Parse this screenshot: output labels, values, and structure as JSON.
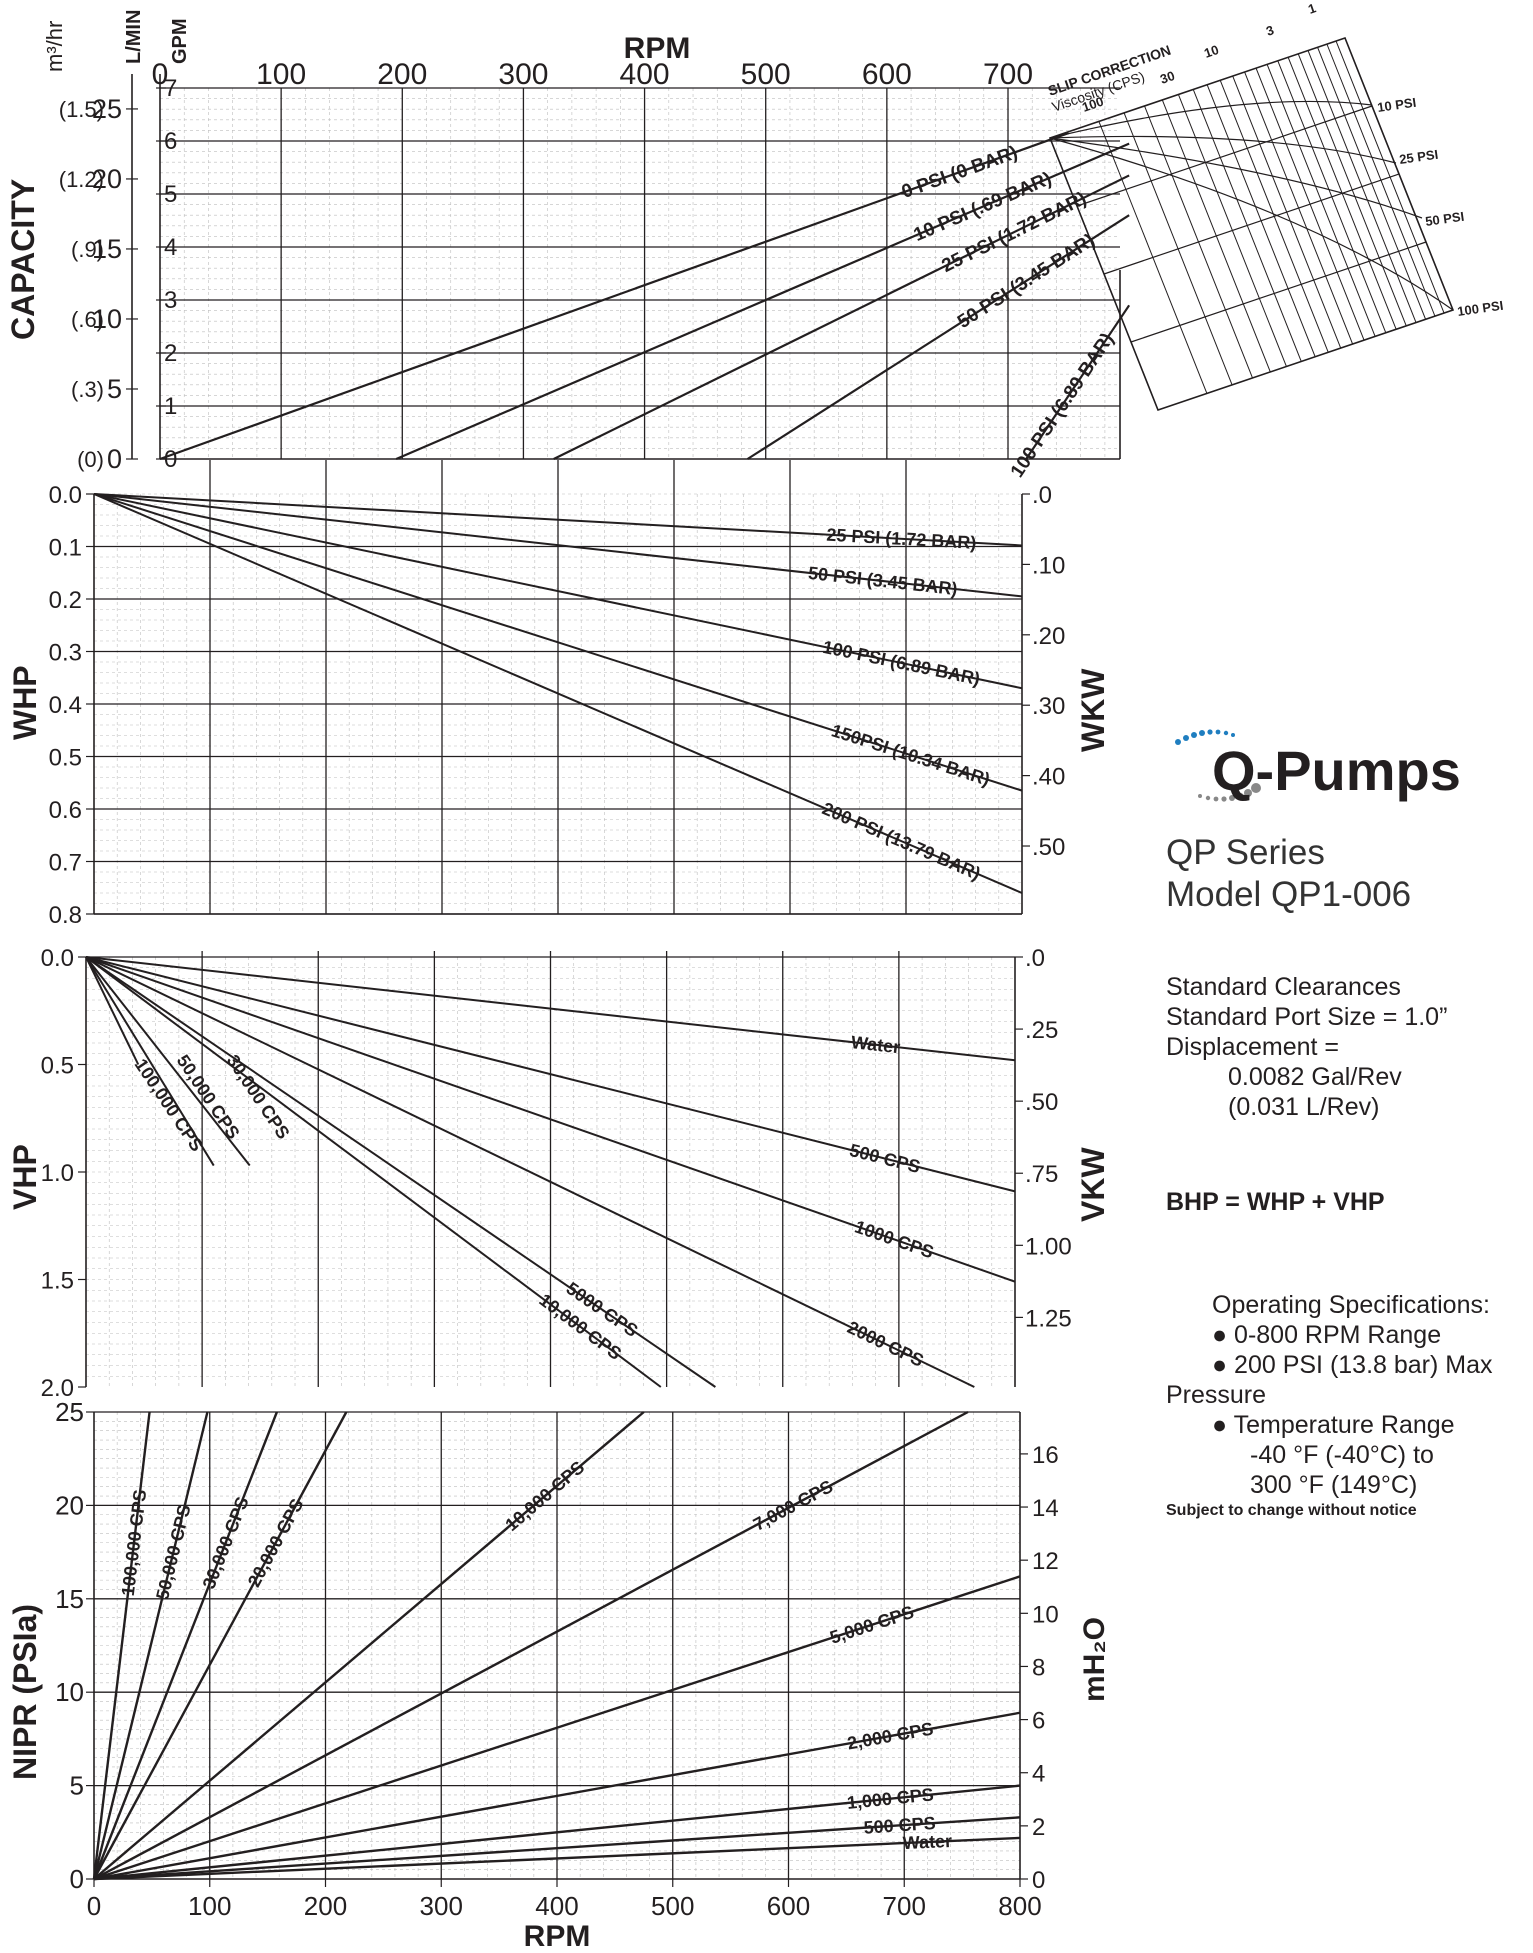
{
  "chart_data": [
    {
      "type": "line",
      "xlabel": "RPM",
      "ylabel": "CAPACITY",
      "xlim": [
        0,
        800
      ],
      "ylim_gpm": [
        0,
        7
      ],
      "x_ticks": [
        "0",
        "100",
        "200",
        "300",
        "400",
        "500",
        "600",
        "700"
      ],
      "unit_labels": [
        "m³/hr",
        "L/MIN",
        "GPM"
      ],
      "gpm_ticks": [
        "0",
        "1",
        "2",
        "3",
        "4",
        "5",
        "6",
        "7"
      ],
      "lmin_ticks": [
        "0",
        "5",
        "10",
        "15",
        "20",
        "25"
      ],
      "m3hr_ticks": [
        "(0)",
        "(.3)",
        "(.6)",
        "(.9)",
        "(1.2)",
        "(1.5)"
      ],
      "series": [
        {
          "name": "0 PSI (0 BAR)",
          "x": [
            0,
            750
          ],
          "y": [
            0,
            6.15
          ]
        },
        {
          "name": "10 PSI (.69 BAR)",
          "x": [
            195,
            800
          ],
          "y": [
            0,
            5.95
          ]
        },
        {
          "name": "25 PSI (1.72 BAR)",
          "x": [
            325,
            800
          ],
          "y": [
            0,
            5.35
          ]
        },
        {
          "name": "50 PSI (3.45 BAR)",
          "x": [
            485,
            800
          ],
          "y": [
            0,
            4.6
          ]
        },
        {
          "name": "100 PSI (6.89 BAR)",
          "x": [
            715,
            800
          ],
          "y": [
            0,
            2.9
          ]
        }
      ],
      "slip_correction": {
        "title": "SLIP CORRECTION",
        "subtitle": "Viscosity (CPS)",
        "viscosity_labels": [
          "1",
          "3",
          "10",
          "30",
          "100"
        ],
        "pressure_labels": [
          "10 PSI",
          "25 PSI",
          "50 PSI",
          "100 PSI"
        ]
      }
    },
    {
      "type": "line",
      "ylabel": "WHP",
      "y2label": "WKW",
      "xlim": [
        0,
        800
      ],
      "ylim": [
        0,
        0.8
      ],
      "y_ticks": [
        "0.0",
        "0.1",
        "0.2",
        "0.3",
        "0.4",
        "0.5",
        "0.6",
        "0.7",
        "0.8"
      ],
      "y2_ticks": [
        ".0",
        ".10",
        ".20",
        ".30",
        ".40",
        ".50"
      ],
      "series": [
        {
          "name": "25 PSI (1.72 BAR)",
          "x": [
            0,
            800
          ],
          "y": [
            0,
            0.098
          ]
        },
        {
          "name": "50 PSI (3.45 BAR)",
          "x": [
            0,
            800
          ],
          "y": [
            0,
            0.195
          ]
        },
        {
          "name": "100 PSI (6.89 BAR)",
          "x": [
            0,
            800
          ],
          "y": [
            0,
            0.37
          ]
        },
        {
          "name": "150PSI (10.34 BAR)",
          "x": [
            0,
            800
          ],
          "y": [
            0,
            0.565
          ]
        },
        {
          "name": "200 PSI (13.79 BAR)",
          "x": [
            0,
            800
          ],
          "y": [
            0,
            0.76
          ]
        }
      ]
    },
    {
      "type": "line",
      "ylabel": "VHP",
      "y2label": "VKW",
      "xlim": [
        0,
        800
      ],
      "ylim": [
        0,
        2.0
      ],
      "y_ticks": [
        "0.0",
        "0.5",
        "1.0",
        "1.5",
        "2.0"
      ],
      "y2_ticks": [
        ".0",
        ".25",
        ".50",
        ".75",
        "1.00",
        "1.25"
      ],
      "series": [
        {
          "name": "Water",
          "x": [
            0,
            800
          ],
          "y": [
            0,
            0.48
          ]
        },
        {
          "name": "500 CPS",
          "x": [
            0,
            800
          ],
          "y": [
            0,
            1.09
          ]
        },
        {
          "name": "1000 CPS",
          "x": [
            0,
            800
          ],
          "y": [
            0,
            1.51
          ]
        },
        {
          "name": "2000 CPS",
          "x": [
            0,
            765
          ],
          "y": [
            0,
            2.0
          ]
        },
        {
          "name": "5000 CPS",
          "x": [
            0,
            542
          ],
          "y": [
            0,
            2.0
          ]
        },
        {
          "name": "10,000 CPS",
          "x": [
            0,
            495
          ],
          "y": [
            0,
            2.0
          ]
        },
        {
          "name": "30,000 CPS",
          "x": [
            0,
            141
          ],
          "y": [
            0,
            0.97
          ]
        },
        {
          "name": "50,000 CPS",
          "x": [
            0,
            110
          ],
          "y": [
            0,
            0.97
          ]
        },
        {
          "name": "100,000 CPS",
          "x": [
            0,
            45
          ],
          "y": [
            0,
            0.5
          ]
        }
      ],
      "extra_labels": [
        "100,000 CPS",
        "50,000 CPS",
        "30,000 CPS"
      ]
    },
    {
      "type": "line",
      "xlabel": "RPM",
      "ylabel": "NIPR (PSIa)",
      "y2label": "mH₂O",
      "xlim": [
        0,
        800
      ],
      "ylim": [
        0,
        25
      ],
      "x_ticks": [
        "0",
        "100",
        "200",
        "300",
        "400",
        "500",
        "600",
        "700",
        "800"
      ],
      "y_ticks": [
        "0",
        "5",
        "10",
        "15",
        "20",
        "25"
      ],
      "y2_ticks": [
        "0",
        "2",
        "4",
        "6",
        "8",
        "10",
        "12",
        "14",
        "16"
      ],
      "series": [
        {
          "name": "100,000 CPS",
          "x": [
            0,
            48
          ],
          "y": [
            0,
            25
          ]
        },
        {
          "name": "50,000 CPS",
          "x": [
            0,
            98
          ],
          "y": [
            0,
            25
          ]
        },
        {
          "name": "30,000 CPS",
          "x": [
            0,
            158
          ],
          "y": [
            0,
            25
          ]
        },
        {
          "name": "20,000 CPS",
          "x": [
            0,
            218
          ],
          "y": [
            0,
            25
          ]
        },
        {
          "name": "10,000 CPS",
          "x": [
            0,
            475
          ],
          "y": [
            0,
            25
          ]
        },
        {
          "name": "7,000 CPS",
          "x": [
            0,
            755
          ],
          "y": [
            0,
            25
          ]
        },
        {
          "name": "5,000 CPS",
          "x": [
            0,
            800
          ],
          "y": [
            0,
            16.2
          ]
        },
        {
          "name": "2,000 CPS",
          "x": [
            0,
            800
          ],
          "y": [
            0,
            8.9
          ]
        },
        {
          "name": "1,000 CPS",
          "x": [
            0,
            800
          ],
          "y": [
            0,
            5.0
          ]
        },
        {
          "name": "500 CPS",
          "x": [
            0,
            800
          ],
          "y": [
            0,
            3.3
          ]
        },
        {
          "name": "Water",
          "x": [
            0,
            800
          ],
          "y": [
            0,
            2.2
          ]
        }
      ]
    }
  ],
  "logo": {
    "text": "Q-Pumps",
    "color": "#1f7ec0"
  },
  "series_title": "QP Series",
  "model_title": "Model QP1-006",
  "specs": {
    "line1": "Standard Clearances",
    "line2": "Standard Port Size = 1.0”",
    "line3": "Displacement =",
    "line4": "0.0082 Gal/Rev",
    "line5": "(0.031 L/Rev)"
  },
  "bhp_formula": "BHP = WHP + VHP",
  "operating": {
    "title": "Operating Specifications:",
    "item1": "0-800 RPM Range",
    "item2a": "200 PSI (13.8 bar) Max",
    "item2b": "Pressure",
    "item3": "Temperature Range",
    "item3a": "-40 °F (-40°C) to",
    "item3b": "300 °F (149°C)"
  },
  "notice": "Subject to change without notice"
}
